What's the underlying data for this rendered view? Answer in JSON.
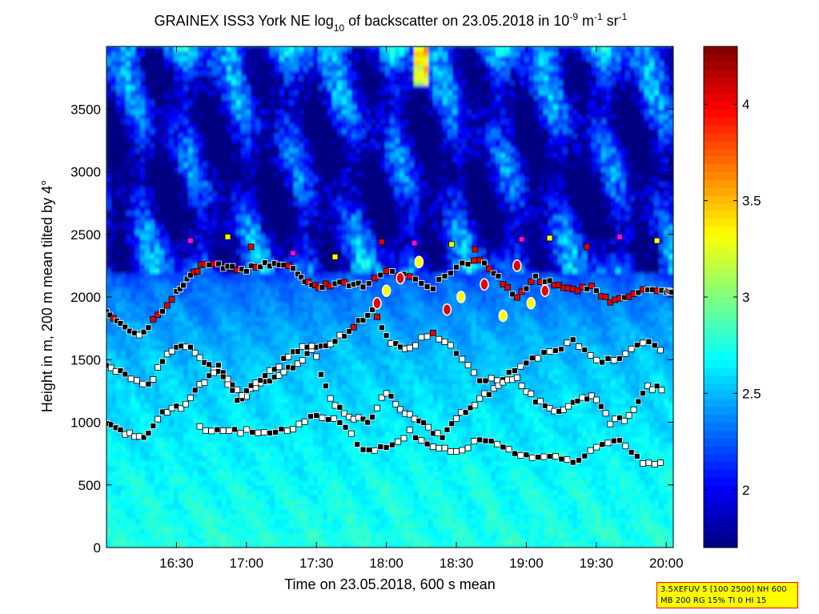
{
  "chart_data": {
    "type": "heatmap",
    "title": {
      "parts": [
        {
          "t": "GRAINEX ISS3 York NE log"
        },
        {
          "t": "10",
          "sub": true
        },
        {
          "t": " of backscatter on 23.05.2018 in 10"
        },
        {
          "t": "-9",
          "sup": true
        },
        {
          "t": " m"
        },
        {
          "t": "-1",
          "sup": true
        },
        {
          "t": " sr"
        },
        {
          "t": "-1",
          "sup": true
        }
      ]
    },
    "xlabel": "Time on 23.05.2018, 600 s mean",
    "ylabel": "Height in m, 200 m mean tilted by 4°",
    "x_range_min": [
      960,
      1203
    ],
    "ylim": [
      0,
      4000
    ],
    "x_ticks": [
      {
        "v": 990,
        "label": "16:30"
      },
      {
        "v": 1020,
        "label": "17:00"
      },
      {
        "v": 1050,
        "label": "17:30"
      },
      {
        "v": 1080,
        "label": "18:00"
      },
      {
        "v": 1110,
        "label": "18:30"
      },
      {
        "v": 1140,
        "label": "19:00"
      },
      {
        "v": 1170,
        "label": "19:30"
      },
      {
        "v": 1200,
        "label": "20:00"
      }
    ],
    "y_ticks": [
      0,
      500,
      1000,
      1500,
      2000,
      2500,
      3000,
      3500
    ],
    "colorbar": {
      "range": [
        1.7,
        4.3
      ],
      "ticks": [
        2,
        2.5,
        3,
        3.5,
        4
      ],
      "colormap": "jet"
    },
    "background_profile": {
      "heights": [
        0,
        500,
        1000,
        1500,
        1800,
        2100,
        2400,
        2700,
        3000,
        3400,
        3800,
        4000
      ],
      "levels": [
        2.75,
        2.7,
        2.62,
        2.52,
        2.42,
        2.3,
        1.95,
        1.8,
        1.82,
        1.88,
        2.0,
        2.3
      ]
    },
    "mixing_layer_tracks": [
      {
        "x": [
          960,
          966,
          974,
          982,
          990,
          996,
          1002,
          1010,
          1018,
          1026,
          1034,
          1042,
          1048,
          1054,
          1062,
          1070,
          1080
        ],
        "y": [
          1900,
          1780,
          1700,
          1850,
          2040,
          2180,
          2260,
          2240,
          2210,
          2260,
          2270,
          2200,
          2080,
          2100,
          2110,
          2090,
          2200
        ]
      },
      {
        "x": [
          1080,
          1090,
          1100,
          1110,
          1120,
          1128,
          1136,
          1144,
          1152,
          1160,
          1168,
          1176,
          1184,
          1192,
          1200,
          1203
        ],
        "y": [
          2200,
          2150,
          2080,
          2250,
          2300,
          2160,
          2000,
          2150,
          2100,
          2060,
          2080,
          1960,
          2020,
          2060,
          2040,
          2030
        ]
      },
      {
        "x": [
          960,
          968,
          978,
          986,
          994,
          1002,
          1010,
          1018,
          1026,
          1034,
          1042,
          1050,
          1058,
          1066,
          1074,
          1082,
          1090,
          1100,
          1110,
          1120,
          1130,
          1140,
          1150,
          1160,
          1170,
          1180,
          1190,
          1200
        ],
        "y": [
          1450,
          1380,
          1300,
          1550,
          1620,
          1460,
          1400,
          1200,
          1300,
          1380,
          1460,
          1600,
          1650,
          1760,
          1900,
          1620,
          1600,
          1720,
          1560,
          1320,
          1360,
          1480,
          1560,
          1640,
          1480,
          1520,
          1640,
          1580
        ]
      },
      {
        "x": [
          960,
          968,
          976,
          984,
          992,
          1000,
          1008,
          1016,
          1024,
          1032,
          1040,
          1048,
          1056,
          1064,
          1072,
          1080,
          1088,
          1096,
          1104,
          1112,
          1120,
          1128,
          1136,
          1144,
          1152,
          1160,
          1168,
          1176,
          1184,
          1192,
          1200
        ],
        "y": [
          980,
          920,
          860,
          1080,
          1120,
          1300,
          1440,
          1180,
          1320,
          1420,
          1560,
          1620,
          1180,
          1040,
          1000,
          1240,
          1080,
          980,
          880,
          1060,
          1180,
          1300,
          1340,
          1180,
          1080,
          1140,
          1220,
          1000,
          1040,
          1280,
          1260
        ]
      },
      {
        "x": [
          1000,
          1010,
          1020,
          1030,
          1040,
          1050,
          1060,
          1070,
          1080,
          1090,
          1100,
          1110,
          1120,
          1130,
          1140,
          1150,
          1160,
          1170,
          1180,
          1190,
          1200
        ],
        "y": [
          960,
          920,
          930,
          920,
          940,
          1060,
          1000,
          780,
          800,
          920,
          800,
          760,
          860,
          800,
          720,
          720,
          680,
          820,
          860,
          680,
          680
        ]
      }
    ],
    "layer_markers": [
      {
        "x": [
          996,
          1012,
          1022,
          1040,
          1058,
          1078,
          1092,
          1108,
          1118,
          1138,
          1150,
          1166,
          1180,
          1196
        ],
        "y": [
          2450,
          2480,
          2400,
          2350,
          2320,
          2440,
          2430,
          2420,
          2380,
          2460,
          2470,
          2400,
          2480,
          2450
        ]
      },
      {
        "x": [
          1076,
          1080,
          1086,
          1094,
          1106,
          1112,
          1122,
          1130,
          1136,
          1142,
          1148
        ],
        "y": [
          1950,
          2050,
          2150,
          2280,
          1900,
          2000,
          2100,
          1850,
          2250,
          1950,
          2050
        ]
      }
    ],
    "annotations": {
      "line1": "3.5XEFUV 5 [100 2500] NH 600",
      "line2": "MB 200 RG 15% TI 0 HI 15"
    },
    "colors": {
      "marker_black": "#000000",
      "marker_white": "#ffffff",
      "marker_yellow": "#ffff00",
      "marker_red": "#e00000",
      "marker_magenta": "#ff00ff",
      "box_fill": "#ffff00",
      "box_border": "#ff0000"
    }
  }
}
